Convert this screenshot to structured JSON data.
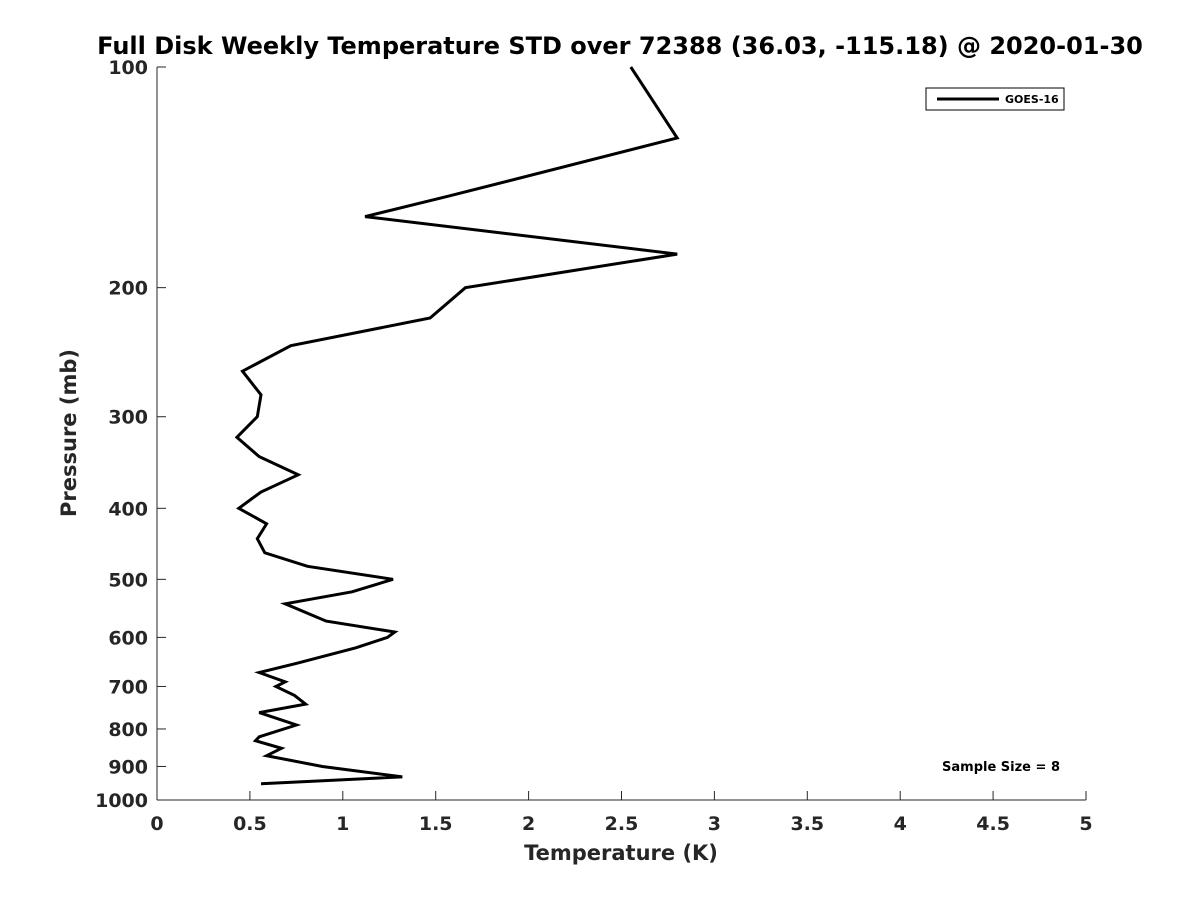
{
  "chart_data": {
    "type": "line",
    "title": "Full Disk Weekly Temperature STD over 72388 (36.03, -115.18) @ 2020-01-30",
    "xlabel": "Temperature (K)",
    "ylabel": "Pressure (mb)",
    "xlim": [
      0,
      5
    ],
    "ylim": [
      100,
      1000
    ],
    "y_scale": "log",
    "y_reversed": true,
    "x_ticks": [
      "0",
      "0.5",
      "1",
      "1.5",
      "2",
      "2.5",
      "3",
      "3.5",
      "4",
      "4.5",
      "5"
    ],
    "y_ticks": [
      "100",
      "200",
      "300",
      "400",
      "500",
      "600",
      "700",
      "800",
      "900",
      "1000"
    ],
    "grid": false,
    "legend_position": "top-right",
    "annotation": "Sample Size = 8",
    "series": [
      {
        "name": "GOES-16",
        "color": "#000000",
        "points": [
          [
            2.55,
            100
          ],
          [
            2.8,
            125
          ],
          [
            1.57,
            150
          ],
          [
            1.12,
            160
          ],
          [
            2.8,
            180
          ],
          [
            1.66,
            200
          ],
          [
            1.47,
            220
          ],
          [
            0.72,
            240
          ],
          [
            0.46,
            260
          ],
          [
            0.56,
            280
          ],
          [
            0.54,
            300
          ],
          [
            0.43,
            320
          ],
          [
            0.55,
            340
          ],
          [
            0.76,
            360
          ],
          [
            0.56,
            380
          ],
          [
            0.44,
            400
          ],
          [
            0.59,
            420
          ],
          [
            0.54,
            440
          ],
          [
            0.58,
            460
          ],
          [
            0.81,
            480
          ],
          [
            1.27,
            500
          ],
          [
            1.05,
            520
          ],
          [
            0.69,
            540
          ],
          [
            0.91,
            570
          ],
          [
            1.28,
            590
          ],
          [
            1.24,
            600
          ],
          [
            1.07,
            620
          ],
          [
            0.76,
            650
          ],
          [
            0.55,
            670
          ],
          [
            0.69,
            690
          ],
          [
            0.64,
            700
          ],
          [
            0.74,
            720
          ],
          [
            0.8,
            740
          ],
          [
            0.55,
            760
          ],
          [
            0.75,
            790
          ],
          [
            0.55,
            820
          ],
          [
            0.53,
            830
          ],
          [
            0.67,
            850
          ],
          [
            0.59,
            870
          ],
          [
            0.89,
            900
          ],
          [
            1.32,
            930
          ],
          [
            0.56,
            950
          ]
        ]
      }
    ]
  }
}
